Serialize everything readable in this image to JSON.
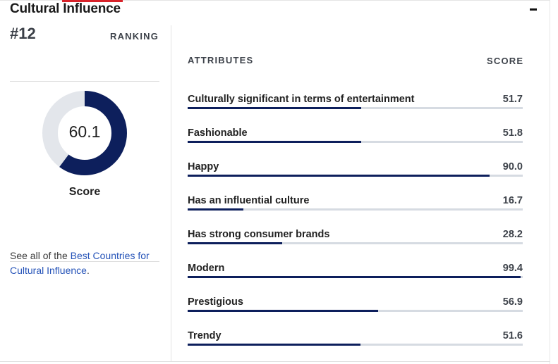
{
  "section": {
    "title": "Cultural Influence",
    "collapse_icon": "minus-icon"
  },
  "colors": {
    "accent_red": "#d8232a",
    "navy": "#0d1f5c",
    "track": "#d6dbe2",
    "link": "#2553b8"
  },
  "summary": {
    "rank": "#12",
    "ranking_label": "RANKING",
    "score": "60.1",
    "score_fraction": 0.601,
    "score_label": "Score",
    "see_all_prefix": "See all of the ",
    "see_all_link": "Best Countries for Cultural Influence",
    "see_all_suffix": "."
  },
  "attributes": {
    "header": "ATTRIBUTES",
    "score_header": "SCORE",
    "items": [
      {
        "name": "Culturally significant in terms of entertainment",
        "score": "51.7",
        "value": 51.7
      },
      {
        "name": "Fashionable",
        "score": "51.8",
        "value": 51.8
      },
      {
        "name": "Happy",
        "score": "90.0",
        "value": 90.0
      },
      {
        "name": "Has an influential culture",
        "score": "16.7",
        "value": 16.7
      },
      {
        "name": "Has strong consumer brands",
        "score": "28.2",
        "value": 28.2
      },
      {
        "name": "Modern",
        "score": "99.4",
        "value": 99.4
      },
      {
        "name": "Prestigious",
        "score": "56.9",
        "value": 56.9
      },
      {
        "name": "Trendy",
        "score": "51.6",
        "value": 51.6
      }
    ]
  }
}
